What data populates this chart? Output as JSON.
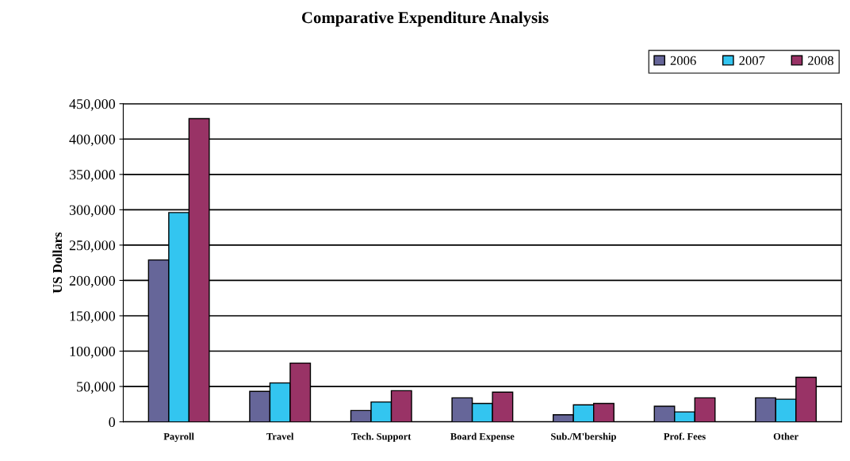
{
  "chart_data": {
    "type": "bar",
    "title": "Comparative Expenditure Analysis",
    "ylabel": "US Dollars",
    "categories": [
      "Payroll",
      "Travel",
      "Tech. Support",
      "Board Expense",
      "Sub./M'bership",
      "Prof. Fees",
      "Other"
    ],
    "series": [
      {
        "name": "2006",
        "color": "#666699",
        "values": [
          229000,
          43000,
          16000,
          34000,
          10000,
          22000,
          34000
        ]
      },
      {
        "name": "2007",
        "color": "#33c5f0",
        "values": [
          296000,
          55000,
          28000,
          26000,
          24000,
          14000,
          32000
        ]
      },
      {
        "name": "2008",
        "color": "#993366",
        "values": [
          429000,
          83000,
          44000,
          42000,
          26000,
          34000,
          63000
        ]
      }
    ],
    "ylim": [
      0,
      450000
    ],
    "yticks": [
      {
        "value": 0,
        "label": "0"
      },
      {
        "value": 50000,
        "label": "50,000"
      },
      {
        "value": 100000,
        "label": "100,000"
      },
      {
        "value": 150000,
        "label": "150,000"
      },
      {
        "value": 200000,
        "label": "200,000"
      },
      {
        "value": 250000,
        "label": "250,000"
      },
      {
        "value": 300000,
        "label": "300,000"
      },
      {
        "value": 350000,
        "label": "350,000"
      },
      {
        "value": 400000,
        "label": "400,000"
      },
      {
        "value": 450000,
        "label": "450,000"
      }
    ],
    "grid": "y",
    "legend": "top right"
  }
}
